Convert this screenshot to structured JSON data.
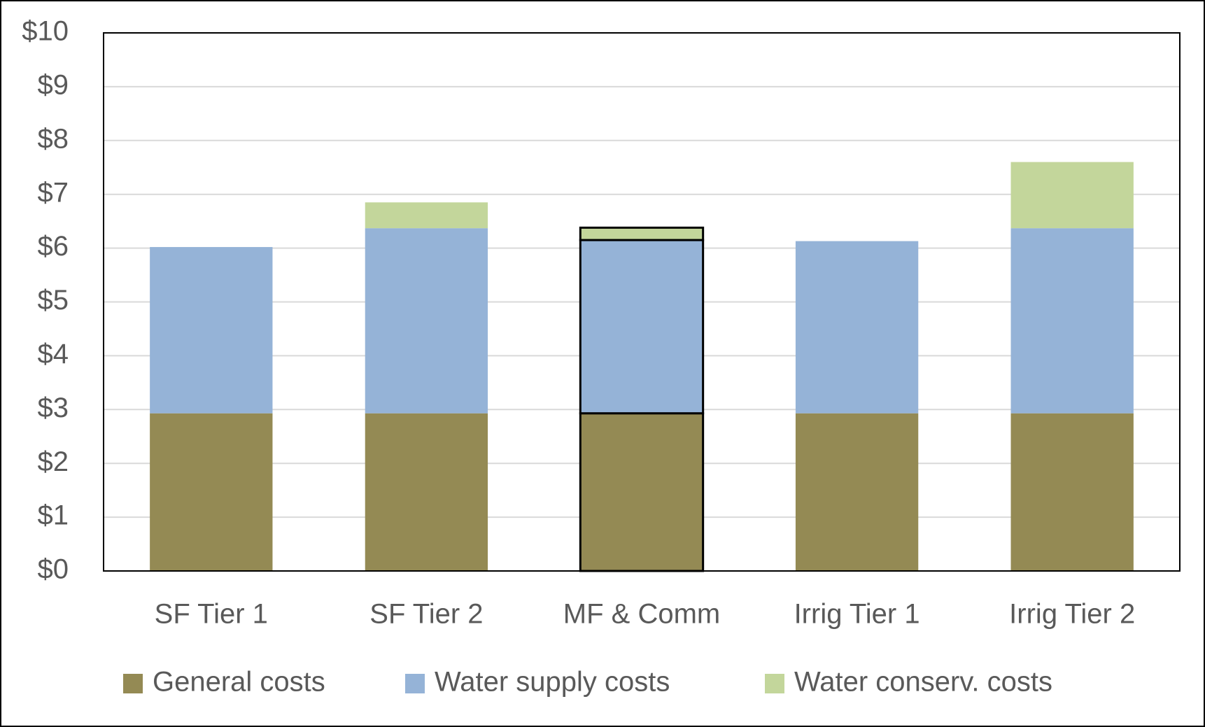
{
  "chart_data": {
    "type": "stacked_bar",
    "categories": [
      "SF Tier 1",
      "SF Tier 2",
      "MF & Comm",
      "Irrig Tier 1",
      "Irrig Tier 2"
    ],
    "series": [
      {
        "name": "General costs",
        "color": "#948a54",
        "values": [
          2.93,
          2.93,
          2.93,
          2.93,
          2.93
        ]
      },
      {
        "name": "Water supply costs",
        "color": "#95b3d7",
        "values": [
          3.09,
          3.44,
          3.22,
          3.2,
          3.44
        ]
      },
      {
        "name": "Water conserv. costs",
        "color": "#c3d69b",
        "values": [
          0,
          0.48,
          0.23,
          0,
          1.23
        ]
      }
    ],
    "outlined": [
      false,
      false,
      true,
      false,
      false
    ],
    "ylim": [
      0,
      10
    ],
    "yticks": [
      {
        "value": 0,
        "label": "$0"
      },
      {
        "value": 1,
        "label": "$1"
      },
      {
        "value": 2,
        "label": "$2"
      },
      {
        "value": 3,
        "label": "$3"
      },
      {
        "value": 4,
        "label": "$4"
      },
      {
        "value": 5,
        "label": "$5"
      },
      {
        "value": 6,
        "label": "$6"
      },
      {
        "value": 7,
        "label": "$7"
      },
      {
        "value": 8,
        "label": "$8"
      },
      {
        "value": 9,
        "label": "$9"
      },
      {
        "value": 10,
        "label": "$10"
      }
    ],
    "grid": true,
    "legend": "bottom"
  }
}
